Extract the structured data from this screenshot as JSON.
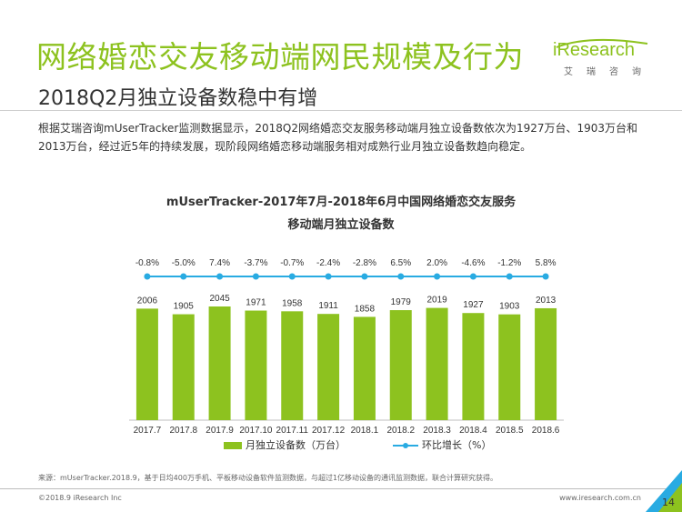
{
  "header": {
    "title": "网络婚恋交友移动端网民规模及行为",
    "subtitle": "2018Q2月独立设备数稳中有增"
  },
  "logo": {
    "name": "iResearch",
    "sub": "艾瑞咨询"
  },
  "description": "根据艾瑞咨询mUserTracker监测数据显示，2018Q2网络婚恋交友服务移动端月独立设备数依次为1927万台、1903万台和2013万台，经过近5年的持续发展，现阶段网络婚恋移动端服务相对成熟行业月独立设备数趋向稳定。",
  "chart_data": {
    "type": "bar",
    "title_line1": "mUserTracker-2017年7月-2018年6月中国网络婚恋交友服务",
    "title_line2": "移动端月独立设备数",
    "categories": [
      "2017.7",
      "2017.8",
      "2017.9",
      "2017.10",
      "2017.11",
      "2017.12",
      "2018.1",
      "2018.2",
      "2018.3",
      "2018.4",
      "2018.5",
      "2018.6"
    ],
    "series": [
      {
        "name": "月独立设备数（万台）",
        "type": "bar",
        "values": [
          2006,
          1905,
          2045,
          1971,
          1958,
          1911,
          1858,
          1979,
          2019,
          1927,
          1903,
          2013
        ]
      },
      {
        "name": "环比增长（%）",
        "type": "line",
        "values": [
          -0.8,
          -5.0,
          7.4,
          -3.7,
          -0.7,
          -2.4,
          -2.8,
          6.5,
          2.0,
          -4.6,
          -1.2,
          5.8
        ],
        "labels": [
          "-0.8%",
          "-5.0%",
          "7.4%",
          "-3.7%",
          "-0.7%",
          "-2.4%",
          "-2.8%",
          "6.5%",
          "2.0%",
          "-4.6%",
          "-1.2%",
          "5.8%"
        ]
      }
    ],
    "legend_position": "bottom",
    "grid": false,
    "colors": {
      "bar": "#8dc21f",
      "line": "#29abe2"
    }
  },
  "footer": {
    "source": "来源：mUserTracker.2018.9，基于日均400万手机、平板移动设备软件监测数据，与超过1亿移动设备的通讯监测数据，联合计算研究获得。",
    "copyright": "©2018.9 iResearch Inc",
    "website": "www.iresearch.com.cn",
    "page": "14"
  }
}
